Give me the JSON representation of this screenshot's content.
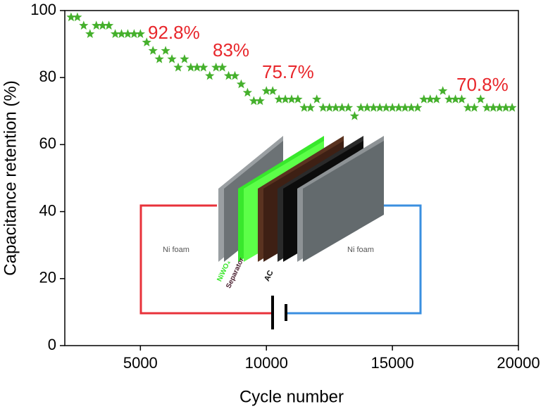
{
  "chart_data": {
    "type": "scatter",
    "x_label": "Cycle number",
    "y_label": "Capacitance retention (%)",
    "xlim": [
      2000,
      20000
    ],
    "xticks": [
      5000,
      10000,
      15000,
      20000
    ],
    "ylim": [
      0,
      100
    ],
    "yticks": [
      0,
      20,
      40,
      60,
      80,
      100
    ],
    "series": [
      {
        "color": "#45b02c",
        "x": [
          2250,
          2500,
          2750,
          3000,
          3250,
          3500,
          3750,
          4000,
          4250,
          4500,
          4750,
          5000,
          5250,
          5500,
          5750,
          6000,
          6250,
          6500,
          6750,
          7000,
          7250,
          7500,
          7750,
          8000,
          8250,
          8500,
          8750,
          9000,
          9250,
          9500,
          9750,
          10000,
          10250,
          10500,
          10750,
          11000,
          11250,
          11500,
          11750,
          12000,
          12250,
          12500,
          12750,
          13000,
          13250,
          13500,
          13750,
          14000,
          14250,
          14500,
          14750,
          15000,
          15250,
          15500,
          15750,
          16000,
          16250,
          16500,
          16750,
          17000,
          17250,
          17500,
          17750,
          18000,
          18250,
          18500,
          18750,
          19000,
          19250,
          19500,
          19750
        ],
        "values": [
          98,
          98,
          95.5,
          93,
          95.5,
          95.5,
          95.5,
          93,
          93,
          93,
          93,
          93,
          90.5,
          88,
          85.5,
          88,
          85.5,
          83,
          85.5,
          83,
          83,
          83,
          80.5,
          83,
          83,
          80.5,
          80.5,
          78,
          75.5,
          73,
          73,
          76,
          76,
          73.5,
          73.5,
          73.5,
          73.5,
          71,
          71,
          73.5,
          71,
          71,
          71,
          71,
          71,
          68.5,
          71,
          71,
          71,
          71,
          71,
          71,
          71,
          71,
          71,
          71,
          73.5,
          73.5,
          73.5,
          76,
          73.5,
          73.5,
          73.5,
          71,
          71,
          73.5,
          71,
          71,
          71,
          71,
          71
        ]
      }
    ],
    "annotations": [
      {
        "text": "92.8%",
        "color": "#e8262b"
      },
      {
        "text": "83%",
        "color": "#e8262b"
      },
      {
        "text": "75.7%",
        "color": "#e8262b"
      },
      {
        "text": "70.8%",
        "color": "#e8262b"
      }
    ],
    "inset_labels": [
      "Ni foam",
      "NiWO₄",
      "Separator",
      "AC",
      "Ni foam"
    ]
  }
}
